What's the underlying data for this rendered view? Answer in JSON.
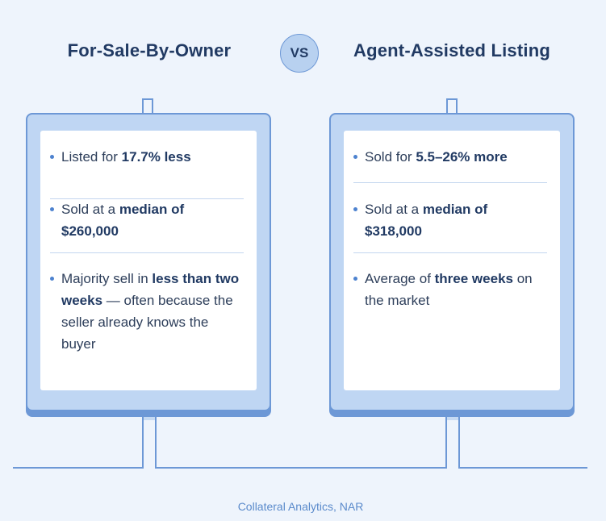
{
  "left": {
    "heading": "For-Sale-By-Owner",
    "items": [
      {
        "pre": "Listed for ",
        "bold": "17.7% less",
        "post": ""
      },
      {
        "pre": "Sold at a ",
        "bold": "median of $260,000",
        "post": ""
      },
      {
        "pre": "Majority sell in ",
        "bold": "less than two weeks",
        "post": " — often because the seller already knows the buyer"
      }
    ]
  },
  "vs": "VS",
  "right": {
    "heading": "Agent-Assisted Listing",
    "items": [
      {
        "pre": "Sold for ",
        "bold": "5.5–26% more",
        "post": ""
      },
      {
        "pre": "Sold at a ",
        "bold": "median of $318,000",
        "post": ""
      },
      {
        "pre": "Average of ",
        "bold": "three weeks",
        "post": " on the market"
      }
    ]
  },
  "source": "Collateral Analytics, NAR",
  "colors": {
    "background": "#eef4fc",
    "sign_fill": "#bfd6f3",
    "outline": "#6d98d6",
    "heading_text": "#213a63",
    "bullet": "#4d82cf"
  }
}
